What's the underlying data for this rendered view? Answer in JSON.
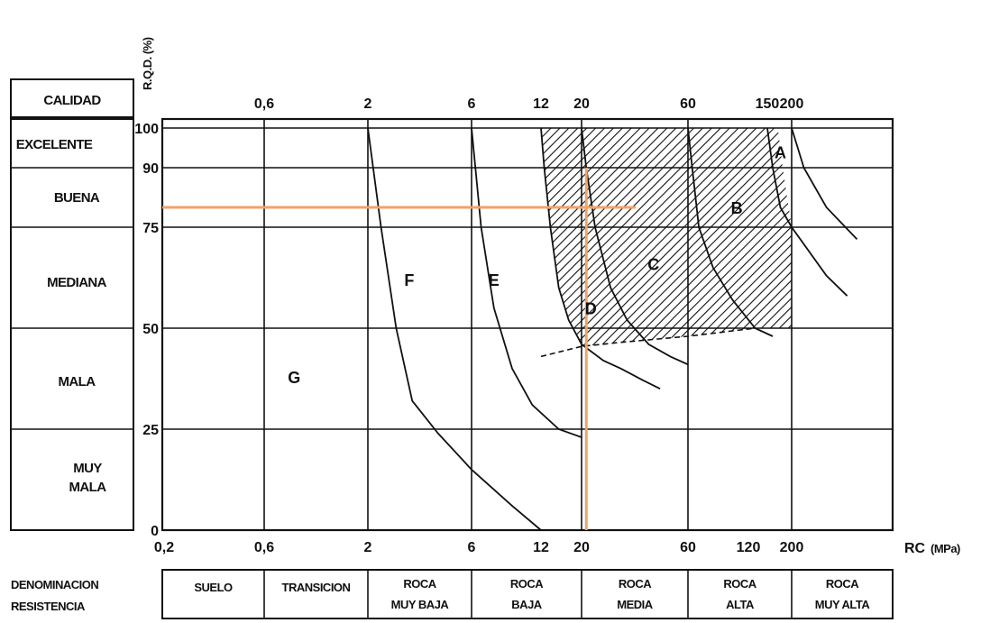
{
  "chart_data": {
    "type": "line",
    "y_title": "R.Q.D. (%)",
    "x_title": "RC",
    "x_unit": "(MPa)",
    "x_scale": "log",
    "quality_header": "CALIDAD",
    "quality_labels": [
      "EXCELENTE",
      "BUENA",
      "MEDIANA",
      "MALA",
      "MUY",
      "MALA"
    ],
    "y_ticks": [
      "100",
      "90",
      "75",
      "50",
      "25",
      "0"
    ],
    "top_x_ticks": [
      "0,6",
      "2",
      "6",
      "12",
      "20",
      "60",
      "150",
      "200"
    ],
    "bottom_x_ticks": [
      "0,2",
      "0,6",
      "2",
      "6",
      "12",
      "20",
      "60",
      "120",
      "200"
    ],
    "resistance_header": [
      "DENOMINACION",
      "RESISTENCIA"
    ],
    "resistance_classes": [
      {
        "line1": "SUELO",
        "line2": ""
      },
      {
        "line1": "TRANSICION",
        "line2": ""
      },
      {
        "line1": "ROCA",
        "line2": "MUY BAJA"
      },
      {
        "line1": "ROCA",
        "line2": "BAJA"
      },
      {
        "line1": "ROCA",
        "line2": "MEDIA"
      },
      {
        "line1": "ROCA",
        "line2": "ALTA"
      },
      {
        "line1": "ROCA",
        "line2": "MUY ALTA"
      }
    ],
    "zones": [
      {
        "label": "A",
        "x": 175,
        "y": 94
      },
      {
        "label": "B",
        "x": 105,
        "y": 80
      },
      {
        "label": "C",
        "x": 42,
        "y": 66
      },
      {
        "label": "D",
        "x": 22,
        "y": 55
      },
      {
        "label": "E",
        "x": 7.5,
        "y": 62
      },
      {
        "label": "F",
        "x": 3.1,
        "y": 62
      },
      {
        "label": "G",
        "x": 0.85,
        "y": 38
      }
    ],
    "boundary_curves": [
      {
        "points": [
          [
            2,
            100
          ],
          [
            2.3,
            75
          ],
          [
            2.7,
            50
          ],
          [
            3.2,
            32
          ],
          [
            4.2,
            24
          ],
          [
            6,
            15
          ],
          [
            9,
            6
          ],
          [
            12,
            0
          ]
        ]
      },
      {
        "points": [
          [
            6,
            100
          ],
          [
            6.6,
            75
          ],
          [
            7.5,
            55
          ],
          [
            9,
            40
          ],
          [
            11,
            31
          ],
          [
            15,
            25
          ],
          [
            20,
            23
          ]
        ]
      },
      {
        "points": [
          [
            12,
            100
          ],
          [
            12.5,
            90
          ],
          [
            13.5,
            75
          ],
          [
            15,
            60
          ],
          [
            17,
            52
          ],
          [
            20,
            46
          ],
          [
            25,
            42
          ],
          [
            30,
            40
          ],
          [
            38,
            37
          ],
          [
            45,
            35
          ]
        ]
      },
      {
        "points": [
          [
            20,
            100
          ],
          [
            21,
            90
          ],
          [
            23,
            75
          ],
          [
            27,
            60
          ],
          [
            32,
            52
          ],
          [
            40,
            46
          ],
          [
            50,
            43
          ],
          [
            60,
            41
          ]
        ]
      },
      {
        "points": [
          [
            60,
            100
          ],
          [
            63,
            90
          ],
          [
            68,
            75
          ],
          [
            80,
            65
          ],
          [
            100,
            57
          ],
          [
            130,
            50
          ],
          [
            160,
            48
          ]
        ]
      },
      {
        "points": [
          [
            150,
            100
          ],
          [
            160,
            90
          ],
          [
            175,
            80
          ],
          [
            200,
            75
          ],
          [
            230,
            63
          ],
          [
            250,
            58
          ]
        ]
      },
      {
        "points": [
          [
            200,
            100
          ],
          [
            210,
            90
          ],
          [
            230,
            80
          ],
          [
            260,
            72
          ]
        ]
      }
    ],
    "dashed_boundary": [
      [
        12,
        43
      ],
      [
        20,
        45.5
      ],
      [
        30,
        46.5
      ],
      [
        60,
        48
      ],
      [
        130,
        50
      ]
    ],
    "hatched_region": [
      [
        12,
        100
      ],
      [
        170,
        100
      ],
      [
        180,
        90
      ],
      [
        200,
        75
      ],
      [
        200,
        50
      ],
      [
        130,
        50
      ],
      [
        60,
        48
      ],
      [
        30,
        46.5
      ],
      [
        20,
        45.5
      ],
      [
        17,
        52
      ],
      [
        15,
        60
      ],
      [
        13.5,
        75
      ],
      [
        12.5,
        90
      ]
    ],
    "highlight": {
      "x": 21,
      "y": 80,
      "color": "#f0a36b"
    },
    "grid": true
  }
}
